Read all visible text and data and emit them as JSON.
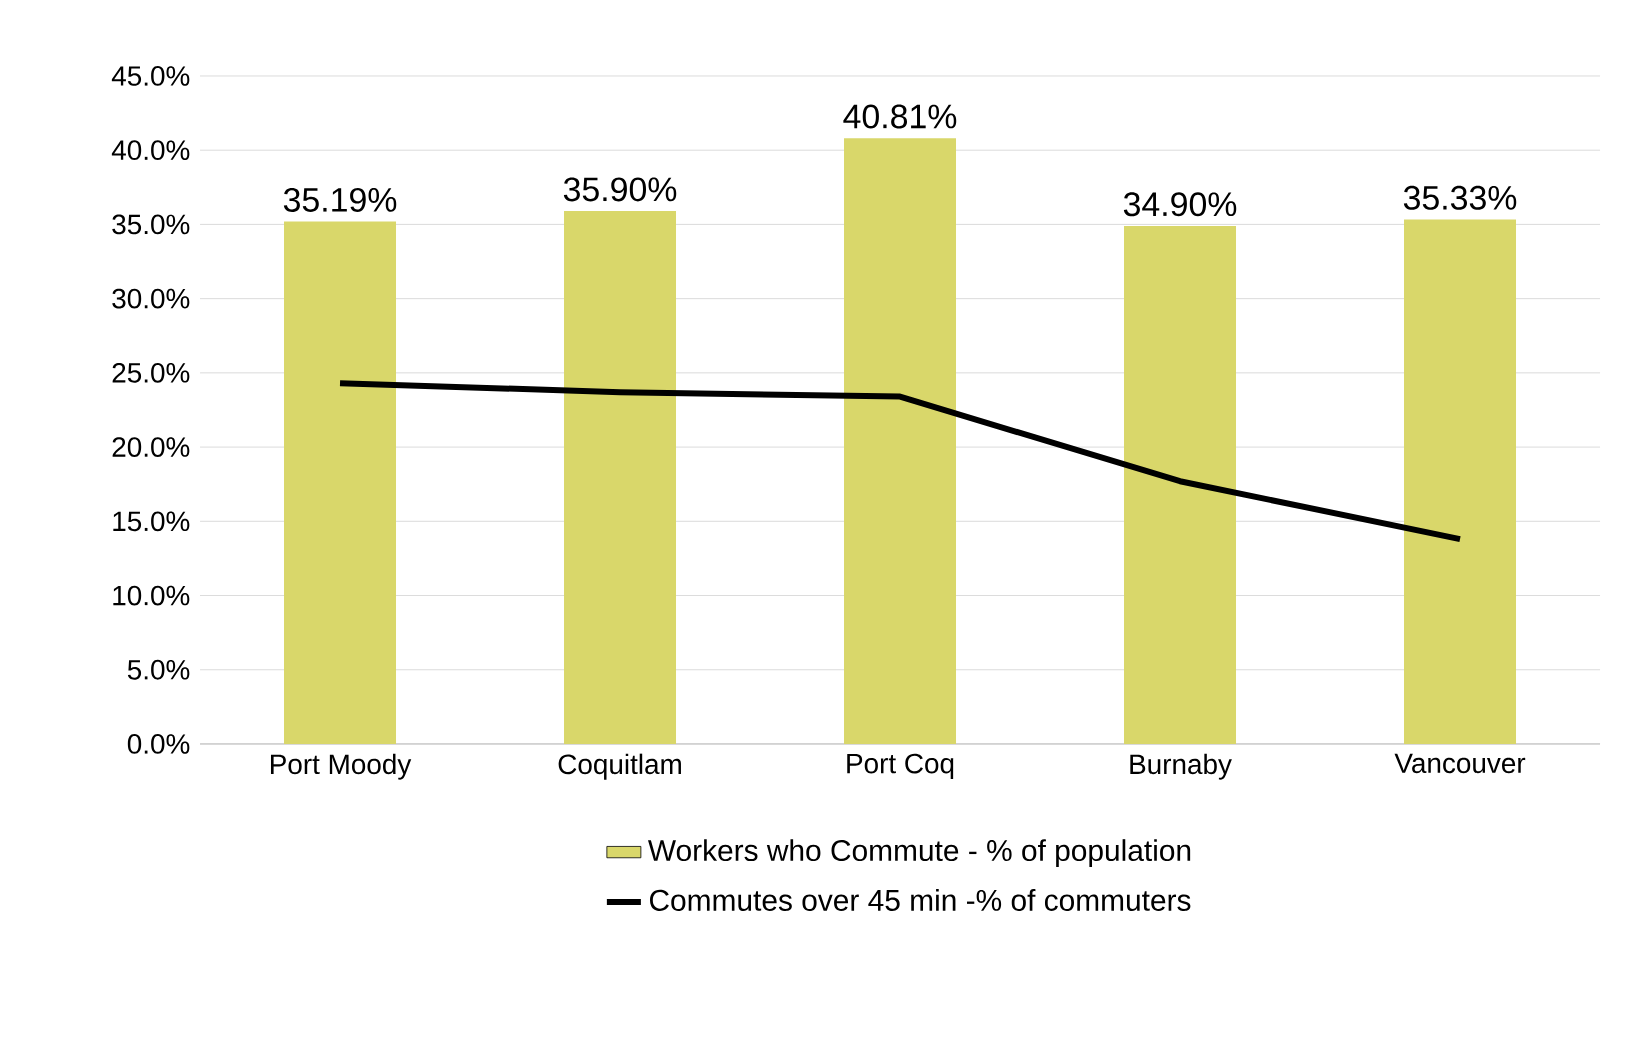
{
  "chart_data": {
    "type": "bar",
    "categories": [
      "Port Moody",
      "Coquitlam",
      "Port Coq",
      "Burnaby",
      "Vancouver"
    ],
    "series": [
      {
        "name": "Workers who Commute - % of population",
        "color": "#d9d76a",
        "values": [
          35.19,
          35.9,
          40.81,
          34.9,
          35.33
        ],
        "value_labels": [
          "35.19%",
          "35.90%",
          "40.81%",
          "34.90%",
          "35.33%"
        ]
      },
      {
        "name": "Commutes over 45 min -% of commuters",
        "type": "line",
        "color": "#000000",
        "values": [
          24.3,
          23.7,
          23.4,
          17.7,
          13.8
        ]
      }
    ],
    "ylim": [
      0,
      45
    ],
    "yticks": [
      {
        "value": 0,
        "label": "0.0%"
      },
      {
        "value": 5,
        "label": "5.0%"
      },
      {
        "value": 10,
        "label": "10.0%"
      },
      {
        "value": 15,
        "label": "15.0%"
      },
      {
        "value": 20,
        "label": "20.0%"
      },
      {
        "value": 25,
        "label": "25.0%"
      },
      {
        "value": 30,
        "label": "30.0%"
      },
      {
        "value": 35,
        "label": "35.0%"
      },
      {
        "value": 40,
        "label": "40.0%"
      },
      {
        "value": 45,
        "label": "45.0%"
      }
    ],
    "grid": "y",
    "legend": "bottom"
  }
}
